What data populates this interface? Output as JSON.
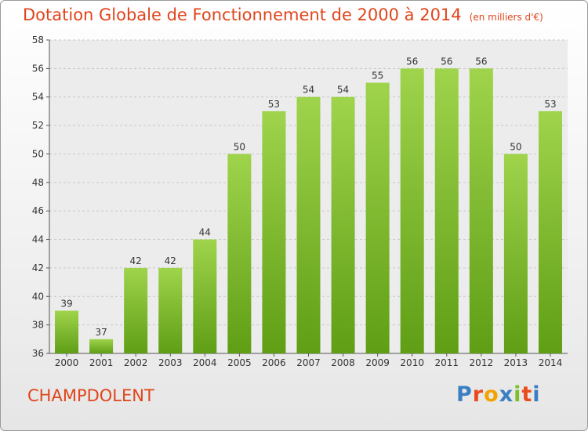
{
  "header": {
    "title": "Dotation Globale de Fonctionnement de 2000 à 2014",
    "unit": "(en milliers d'€)"
  },
  "footer": {
    "city": "CHAMPDOLENT",
    "logo": "Proxiti"
  },
  "colors": {
    "title": "#e0451c",
    "bar_top": "#9fd44c",
    "bar_bottom": "#5f9e15",
    "logo_letters": [
      "#3a7fc4",
      "#e94b1c",
      "#f2a300",
      "#3a7fc4",
      "#7cbf2a",
      "#e94b1c",
      "#3a7fc4"
    ]
  },
  "chart_data": {
    "type": "bar",
    "categories": [
      "2000",
      "2001",
      "2002",
      "2003",
      "2004",
      "2005",
      "2006",
      "2007",
      "2008",
      "2009",
      "2010",
      "2011",
      "2012",
      "2013",
      "2014"
    ],
    "values": [
      39,
      37,
      42,
      42,
      44,
      50,
      53,
      54,
      54,
      55,
      56,
      56,
      56,
      50,
      53
    ],
    "ylim": [
      36,
      58
    ],
    "yticks": [
      36,
      38,
      40,
      42,
      44,
      46,
      48,
      50,
      52,
      54,
      56,
      58
    ],
    "grid": true
  }
}
